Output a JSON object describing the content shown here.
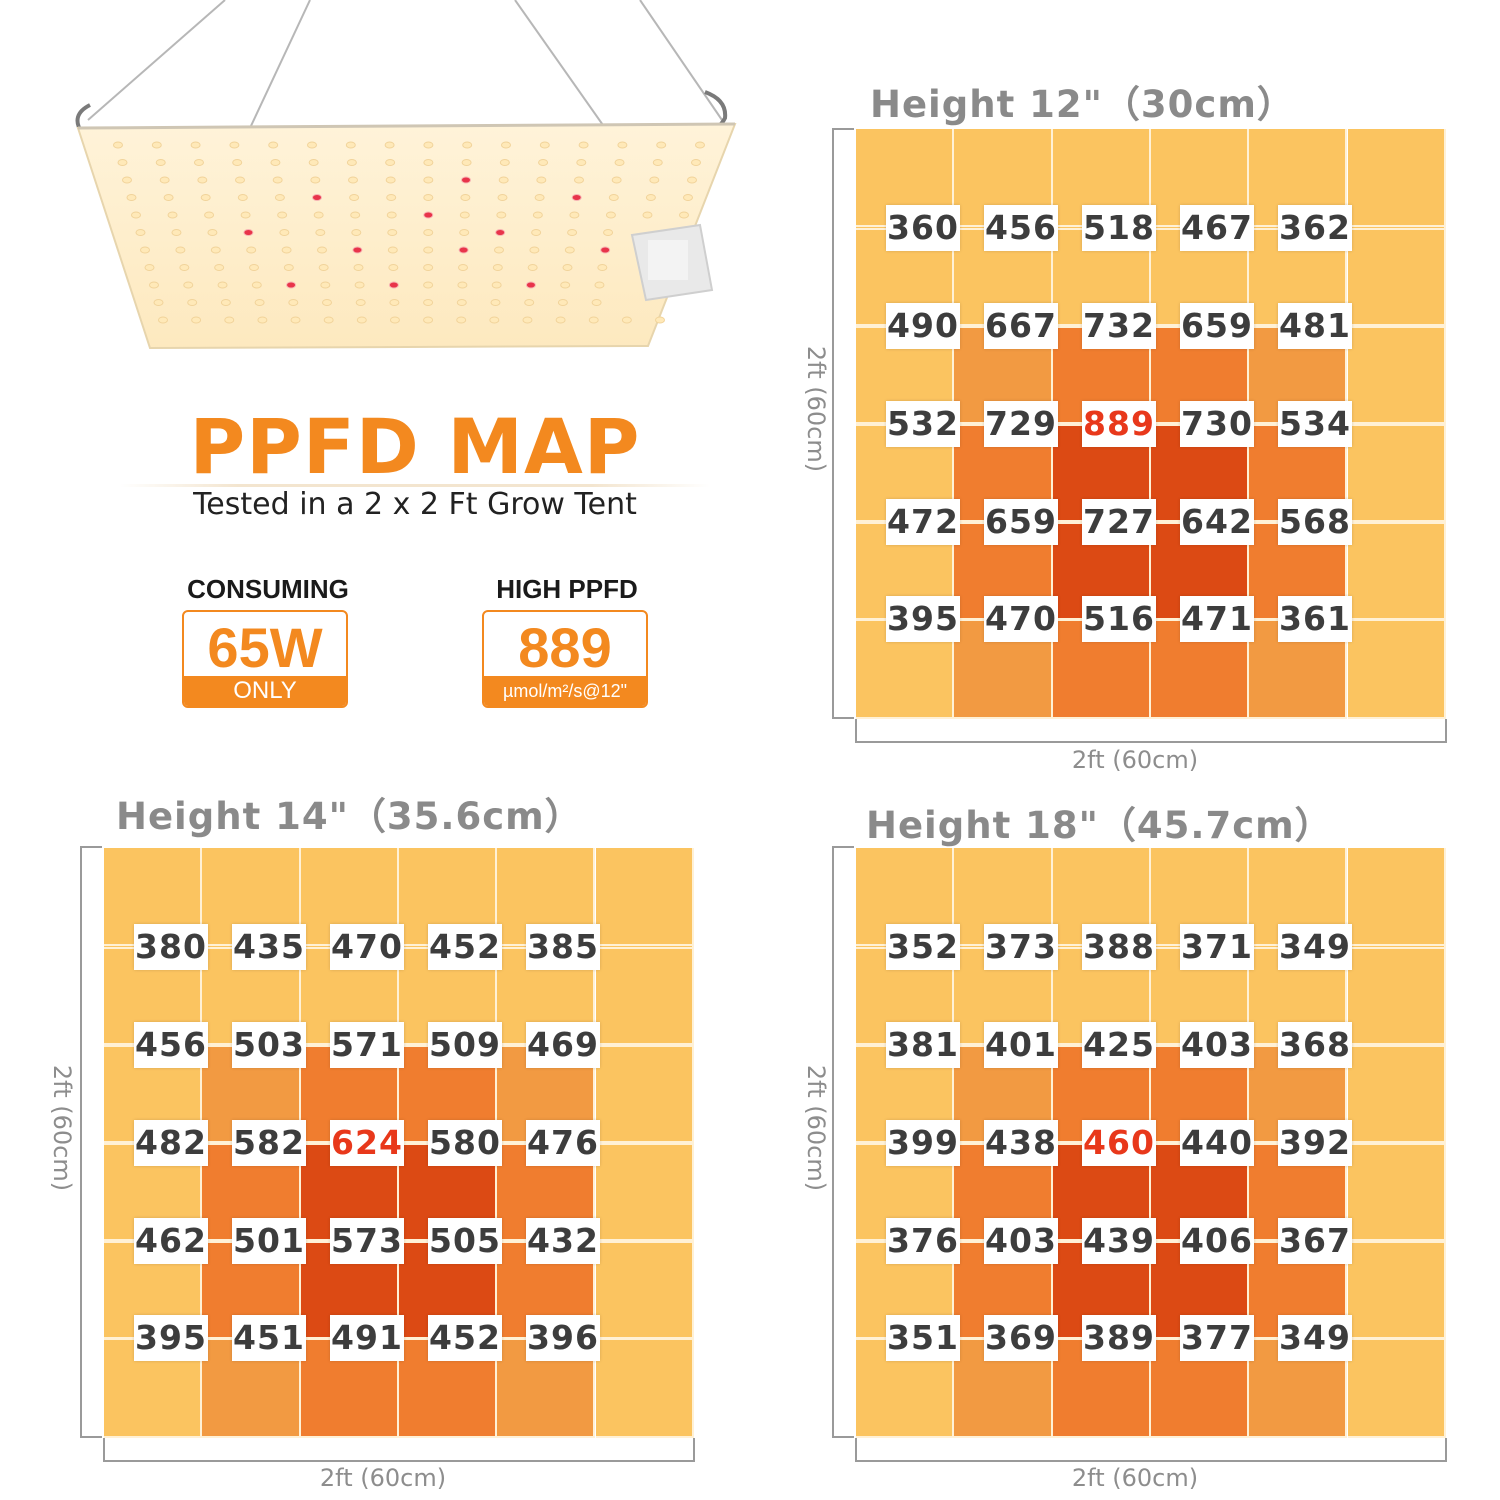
{
  "headline": {
    "title": "PPFD MAP",
    "subtitle": "Tested in a 2 x 2 Ft Grow Tent"
  },
  "badges": {
    "consuming": {
      "label": "CONSUMING",
      "value": "65W",
      "foot": "ONLY"
    },
    "high_ppfd": {
      "label": "HIGH PPFD",
      "value": "889",
      "foot": "µmol/m²/s@12\""
    }
  },
  "colors": {
    "accent": "#f3891f",
    "peak_value": "#e8381b",
    "heat_levels": [
      "#fbc460",
      "#f29a42",
      "#f07d2f",
      "#dc4a14"
    ]
  },
  "icons": [
    "grow-light-panel-icon"
  ],
  "maps": [
    {
      "title": "Height 12\"（30cm）",
      "dim_width": "2ft (60cm)",
      "dim_height": "2ft (60cm)",
      "peak": [
        2,
        2
      ],
      "values": [
        [
          "360",
          "456",
          "518",
          "467",
          "362"
        ],
        [
          "490",
          "667",
          "732",
          "659",
          "481"
        ],
        [
          "532",
          "729",
          "889",
          "730",
          "534"
        ],
        [
          "472",
          "659",
          "727",
          "642",
          "568"
        ],
        [
          "395",
          "470",
          "516",
          "471",
          "361"
        ]
      ]
    },
    {
      "title": "Height 14\"（35.6cm）",
      "dim_width": "2ft (60cm)",
      "dim_height": "2ft (60cm)",
      "peak": [
        2,
        2
      ],
      "values": [
        [
          "380",
          "435",
          "470",
          "452",
          "385"
        ],
        [
          "456",
          "503",
          "571",
          "509",
          "469"
        ],
        [
          "482",
          "582",
          "624",
          "580",
          "476"
        ],
        [
          "462",
          "501",
          "573",
          "505",
          "432"
        ],
        [
          "395",
          "451",
          "491",
          "452",
          "396"
        ]
      ]
    },
    {
      "title": "Height 18\"（45.7cm）",
      "dim_width": "2ft (60cm)",
      "dim_height": "2ft (60cm)",
      "peak": [
        2,
        2
      ],
      "values": [
        [
          "352",
          "373",
          "388",
          "371",
          "349"
        ],
        [
          "381",
          "401",
          "425",
          "403",
          "368"
        ],
        [
          "399",
          "438",
          "460",
          "440",
          "392"
        ],
        [
          "376",
          "403",
          "439",
          "406",
          "367"
        ],
        [
          "351",
          "369",
          "389",
          "377",
          "349"
        ]
      ]
    }
  ]
}
